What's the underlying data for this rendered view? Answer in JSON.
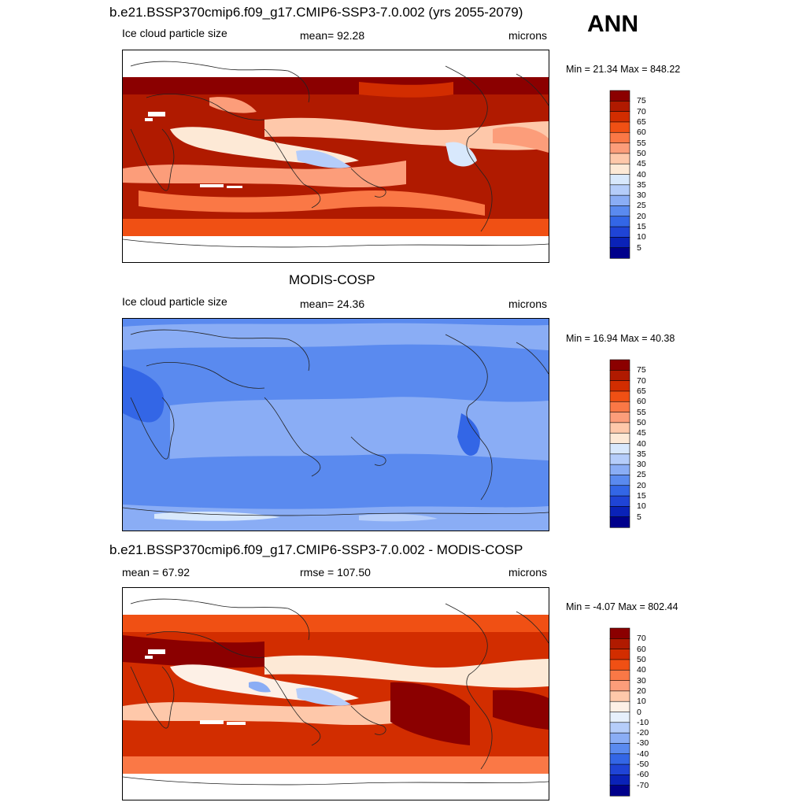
{
  "season": "ANN",
  "panels": [
    {
      "title": "b.e21.BSSP370cmip6.f09_g17.CMIP6-SSP3-7.0.002 (yrs 2055-2079)",
      "left": "Ice cloud particle size",
      "center": "mean=  92.28",
      "right": "microns",
      "minmax": "Min =  21.34 Max = 848.22",
      "palette": "ssp",
      "colorbar": {
        "labels": [
          "75",
          "70",
          "65",
          "60",
          "55",
          "50",
          "45",
          "40",
          "35",
          "30",
          "25",
          "20",
          "15",
          "10",
          "5"
        ],
        "colors": [
          "#8b0000",
          "#b01a00",
          "#d22d00",
          "#f05014",
          "#fa7846",
          "#fc9d7a",
          "#fec8aa",
          "#fde9d6",
          "#d8e8fc",
          "#b5cdfa",
          "#8aadf5",
          "#5a8aef",
          "#3366e6",
          "#1f44d6",
          "#0a22b8",
          "#00008b"
        ]
      }
    },
    {
      "title": "MODIS-COSP",
      "left": "Ice cloud particle size",
      "center": "mean=  24.36",
      "right": "microns",
      "minmax": "Min =  16.94 Max =  40.38",
      "palette": "modis",
      "colorbar": {
        "labels": [
          "75",
          "70",
          "65",
          "60",
          "55",
          "50",
          "45",
          "40",
          "35",
          "30",
          "25",
          "20",
          "15",
          "10",
          "5"
        ],
        "colors": [
          "#8b0000",
          "#b01a00",
          "#d22d00",
          "#f05014",
          "#fa7846",
          "#fc9d7a",
          "#fec8aa",
          "#fde9d6",
          "#d8e8fc",
          "#b5cdfa",
          "#8aadf5",
          "#5a8aef",
          "#3366e6",
          "#1f44d6",
          "#0a22b8",
          "#00008b"
        ]
      }
    },
    {
      "title": "b.e21.BSSP370cmip6.f09_g17.CMIP6-SSP3-7.0.002 - MODIS-COSP",
      "left": "mean =  67.92",
      "center": "rmse = 107.50",
      "right": "microns",
      "minmax": "Min =  -4.07 Max = 802.44",
      "palette": "diff",
      "colorbar": {
        "labels": [
          "70",
          "60",
          "50",
          "40",
          "30",
          "20",
          "10",
          "0",
          "-10",
          "-20",
          "-30",
          "-40",
          "-50",
          "-60",
          "-70"
        ],
        "colors": [
          "#8b0000",
          "#b01a00",
          "#d22d00",
          "#f05014",
          "#fa7846",
          "#fc9d7a",
          "#fec8aa",
          "#fdf0e6",
          "#e6f0fc",
          "#b5cdfa",
          "#8aadf5",
          "#5a8aef",
          "#3366e6",
          "#1f44d6",
          "#0a22b8",
          "#00008b"
        ]
      }
    }
  ]
}
